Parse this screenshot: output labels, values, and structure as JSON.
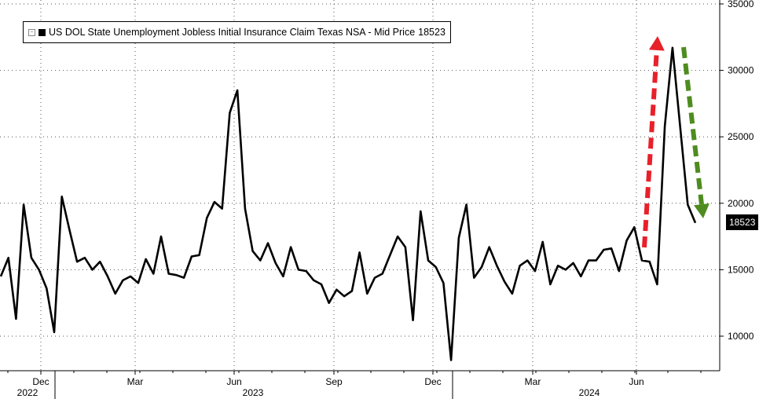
{
  "chart_data": {
    "type": "line",
    "title": "",
    "xlabel": "",
    "ylabel": "",
    "ylim": [
      7500,
      35000
    ],
    "yticks": [
      10000,
      15000,
      20000,
      25000,
      30000,
      35000
    ],
    "grid": true,
    "legend_position": "top-left",
    "x_month_labels": [
      "Dec",
      "Mar",
      "Jun",
      "Sep",
      "Dec",
      "Mar",
      "Jun"
    ],
    "x_year_labels": [
      "2022",
      "2023",
      "2024"
    ],
    "series": [
      {
        "name": "US DOL State Unemployment Jobless Initial Insurance Claim Texas NSA - Mid Price",
        "last_value_text": "18523",
        "color": "#000000",
        "values": [
          14500,
          15900,
          11300,
          19900,
          15900,
          15000,
          13600,
          10300,
          20500,
          18000,
          15600,
          15900,
          15000,
          15600,
          14500,
          13200,
          14200,
          14500,
          14000,
          15800,
          14700,
          17500,
          14700,
          14600,
          14400,
          16000,
          16100,
          18900,
          20100,
          19600,
          26800,
          28500,
          19600,
          16400,
          15700,
          17000,
          15500,
          14500,
          16700,
          15000,
          14900,
          14200,
          13900,
          12500,
          13500,
          13000,
          13400,
          16300,
          13200,
          14400,
          14700,
          16100,
          17500,
          16700,
          11200,
          19400,
          15700,
          15200,
          14000,
          8200,
          17400,
          19900,
          14400,
          15200,
          16700,
          15300,
          14100,
          13200,
          15300,
          15700,
          14900,
          17100,
          13900,
          15300,
          15000,
          15500,
          14500,
          15700,
          15700,
          16500,
          16600,
          14900,
          17200,
          18200,
          15700,
          15600,
          13900,
          25800,
          31700,
          25800,
          19900,
          18523
        ]
      }
    ],
    "annotations": [
      {
        "type": "arrow",
        "direction": "up",
        "color": "#e8202a"
      },
      {
        "type": "arrow",
        "direction": "down",
        "color": "#4e8c1f"
      }
    ],
    "colors": {
      "line": "#000000",
      "up_arrow": "#e8202a",
      "down_arrow": "#4e8c1f",
      "grid": "#555555"
    }
  }
}
